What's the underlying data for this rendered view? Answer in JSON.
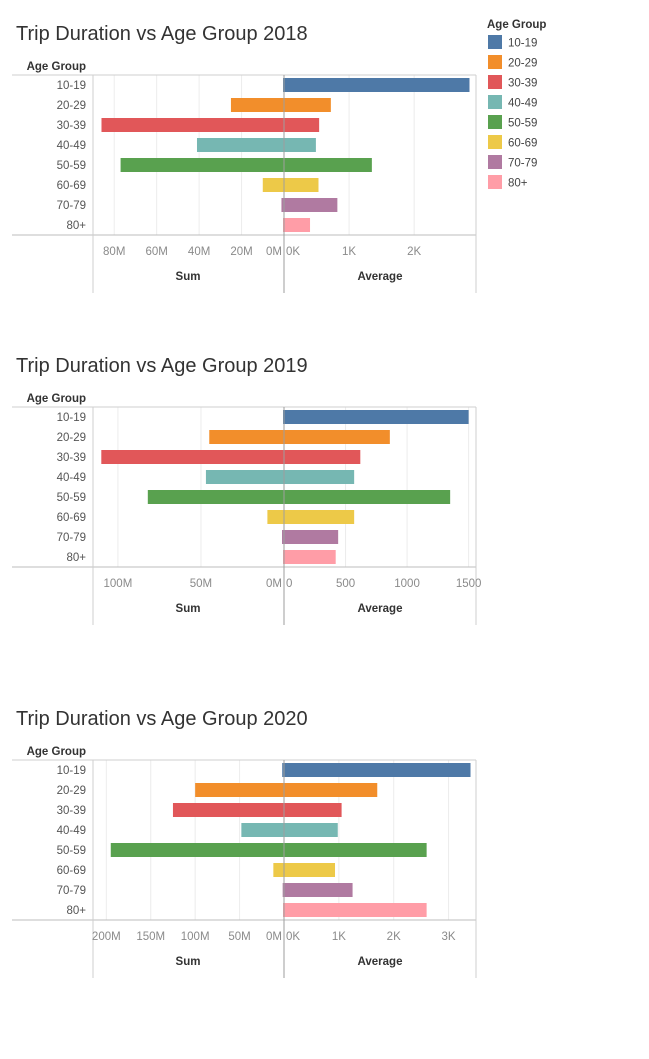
{
  "legend": {
    "title": "Age Group",
    "items": [
      {
        "label": "10-19",
        "color": "#4e79a7"
      },
      {
        "label": "20-29",
        "color": "#f28e2b"
      },
      {
        "label": "30-39",
        "color": "#e15759"
      },
      {
        "label": "40-49",
        "color": "#76b7b2"
      },
      {
        "label": "50-59",
        "color": "#59a14f"
      },
      {
        "label": "60-69",
        "color": "#edc948"
      },
      {
        "label": "70-79",
        "color": "#b07aa1"
      },
      {
        "label": "80+",
        "color": "#ff9da7"
      }
    ]
  },
  "chart_data": [
    {
      "type": "bar",
      "title": "Trip Duration vs Age Group 2018",
      "row_header": "Age Group",
      "categories": [
        "10-19",
        "20-29",
        "30-39",
        "40-49",
        "50-59",
        "60-69",
        "70-79",
        "80+"
      ],
      "sum": {
        "label": "Sum",
        "values": [
          0,
          25000000,
          86000000,
          41000000,
          77000000,
          10000000,
          1200000,
          300000
        ],
        "ticks": [
          {
            "v": 80000000,
            "t": "80M"
          },
          {
            "v": 60000000,
            "t": "60M"
          },
          {
            "v": 40000000,
            "t": "40M"
          },
          {
            "v": 20000000,
            "t": "20M"
          },
          {
            "v": 0,
            "t": "0M"
          }
        ],
        "max": 90000000
      },
      "average": {
        "label": "Average",
        "values": [
          2850,
          720,
          540,
          490,
          1350,
          530,
          820,
          400
        ],
        "ticks": [
          {
            "v": 0,
            "t": "0K"
          },
          {
            "v": 1000,
            "t": "1K"
          },
          {
            "v": 2000,
            "t": "2K"
          }
        ],
        "max": 2950
      }
    },
    {
      "type": "bar",
      "title": "Trip Duration vs Age Group 2019",
      "row_header": "Age Group",
      "categories": [
        "10-19",
        "20-29",
        "30-39",
        "40-49",
        "50-59",
        "60-69",
        "70-79",
        "80+"
      ],
      "sum": {
        "label": "Sum",
        "values": [
          0,
          45000000,
          110000000,
          47000000,
          82000000,
          10000000,
          1200000,
          300000
        ],
        "ticks": [
          {
            "v": 100000000,
            "t": "100M"
          },
          {
            "v": 50000000,
            "t": "50M"
          },
          {
            "v": 0,
            "t": "0M"
          }
        ],
        "max": 115000000
      },
      "average": {
        "label": "Average",
        "values": [
          1500,
          860,
          620,
          570,
          1350,
          570,
          440,
          420
        ],
        "ticks": [
          {
            "v": 0,
            "t": "0"
          },
          {
            "v": 500,
            "t": "500"
          },
          {
            "v": 1000,
            "t": "1000"
          },
          {
            "v": 1500,
            "t": "1500"
          }
        ],
        "max": 1560
      }
    },
    {
      "type": "bar",
      "title": "Trip Duration vs Age Group 2020",
      "row_header": "Age Group",
      "categories": [
        "10-19",
        "20-29",
        "30-39",
        "40-49",
        "50-59",
        "60-69",
        "70-79",
        "80+"
      ],
      "sum": {
        "label": "Sum",
        "values": [
          2000000,
          100000000,
          125000000,
          48000000,
          195000000,
          12000000,
          1500000,
          300000
        ],
        "ticks": [
          {
            "v": 200000000,
            "t": "200M"
          },
          {
            "v": 150000000,
            "t": "150M"
          },
          {
            "v": 100000000,
            "t": "100M"
          },
          {
            "v": 50000000,
            "t": "50M"
          },
          {
            "v": 0,
            "t": "0M"
          }
        ],
        "max": 215000000
      },
      "average": {
        "label": "Average",
        "values": [
          3400,
          1700,
          1050,
          980,
          2600,
          930,
          1250,
          2600
        ],
        "ticks": [
          {
            "v": 0,
            "t": "0K"
          },
          {
            "v": 1000,
            "t": "1K"
          },
          {
            "v": 2000,
            "t": "2K"
          },
          {
            "v": 3000,
            "t": "3K"
          }
        ],
        "max": 3500
      }
    }
  ]
}
